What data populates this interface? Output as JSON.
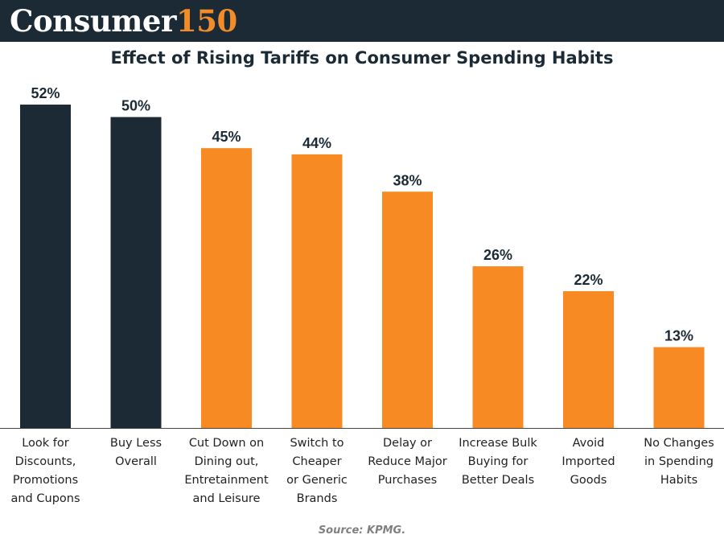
{
  "header": {
    "logo_word": "Consumer",
    "logo_number": "150"
  },
  "colors": {
    "header_bg": "#1b2a35",
    "accent": "#f28c28",
    "highlight_bar": "#1b2a35",
    "default_bar": "#f88a24"
  },
  "source": "Source: KPMG.",
  "chart_data": {
    "type": "bar",
    "title": "Effect of Rising Tariffs on Consumer Spending Habits",
    "xlabel": "",
    "ylabel": "",
    "ylim": [
      0,
      55
    ],
    "grid": false,
    "categories": [
      [
        "Look for",
        "Discounts,",
        "Promotions",
        "and Cupons"
      ],
      [
        "Buy Less",
        "Overall"
      ],
      [
        "Cut Down on",
        "Dining out,",
        "Entretainment",
        "and Leisure"
      ],
      [
        "Switch to",
        "Cheaper",
        "or Generic",
        "Brands"
      ],
      [
        "Delay or",
        "Reduce Major",
        "Purchases"
      ],
      [
        "Increase Bulk",
        "Buying for",
        "Better Deals"
      ],
      [
        "Avoid",
        "Imported",
        "Goods"
      ],
      [
        "No Changes",
        "in Spending",
        "Habits"
      ]
    ],
    "values": [
      52,
      50,
      45,
      44,
      38,
      26,
      22,
      13
    ],
    "value_labels": [
      "52%",
      "50%",
      "45%",
      "44%",
      "38%",
      "26%",
      "22%",
      "13%"
    ],
    "highlighted": [
      true,
      true,
      false,
      false,
      false,
      false,
      false,
      false
    ]
  }
}
